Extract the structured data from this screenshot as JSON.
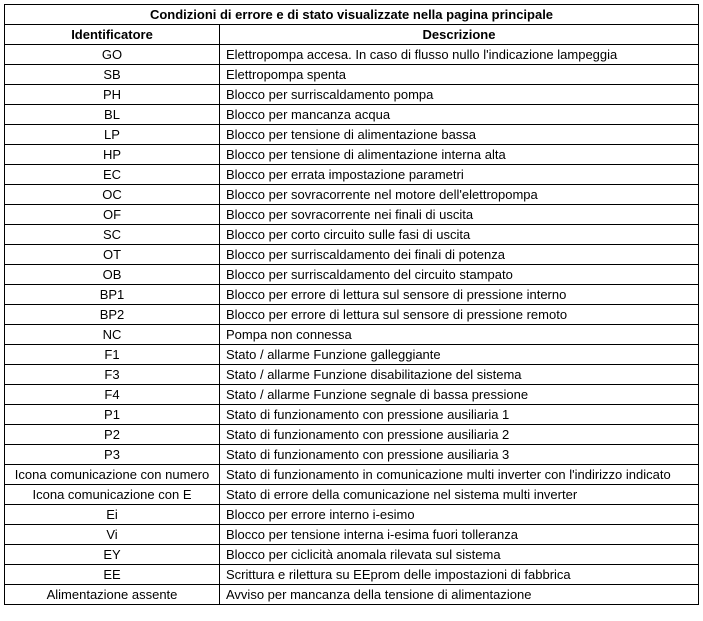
{
  "table": {
    "title": "Condizioni di errore e di stato visualizzate nella pagina principale",
    "columns": [
      "Identificatore",
      "Descrizione"
    ],
    "rows": [
      [
        "GO",
        "Elettropompa accesa.  In caso di flusso nullo l'indicazione lampeggia"
      ],
      [
        "SB",
        "Elettropompa spenta"
      ],
      [
        "PH",
        "Blocco per surriscaldamento pompa"
      ],
      [
        "BL",
        "Blocco per mancanza acqua"
      ],
      [
        "LP",
        "Blocco per tensione di alimentazione bassa"
      ],
      [
        "HP",
        "Blocco per tensione di alimentazione interna alta"
      ],
      [
        "EC",
        "Blocco per errata impostazione  parametri"
      ],
      [
        "OC",
        "Blocco per sovracorrente nel motore dell'elettropompa"
      ],
      [
        "OF",
        "Blocco per sovracorrente nei finali di uscita"
      ],
      [
        "SC",
        "Blocco per corto circuito sulle fasi di uscita"
      ],
      [
        "OT",
        "Blocco per surriscaldamento dei finali di potenza"
      ],
      [
        "OB",
        "Blocco per surriscaldamento del circuito stampato"
      ],
      [
        "BP1",
        "Blocco per errore di lettura sul sensore di pressione interno"
      ],
      [
        "BP2",
        "Blocco per errore di lettura sul sensore di pressione remoto"
      ],
      [
        "NC",
        "Pompa non connessa"
      ],
      [
        "F1",
        "Stato / allarme Funzione galleggiante"
      ],
      [
        "F3",
        "Stato / allarme Funzione disabilitazione del sistema"
      ],
      [
        "F4",
        "Stato / allarme Funzione segnale di bassa pressione"
      ],
      [
        "P1",
        "Stato di funzionamento con pressione ausiliaria 1"
      ],
      [
        "P2",
        "Stato di funzionamento con pressione ausiliaria 2"
      ],
      [
        "P3",
        "Stato di funzionamento con pressione ausiliaria 3"
      ],
      [
        "Icona comunicazione con numero",
        "Stato di funzionamento in comunicazione multi inverter con l'indirizzo indicato"
      ],
      [
        "Icona comunicazione con E",
        "Stato di errore della comunicazione nel sistema multi inverter"
      ],
      [
        "Ei",
        "Blocco per errore interno i-esimo"
      ],
      [
        "Vi",
        "Blocco per tensione interna i-esima fuori tolleranza"
      ],
      [
        "EY",
        "Blocco per ciclicità anomala rilevata sul sistema"
      ],
      [
        "EE",
        "Scrittura e rilettura su EEprom delle impostazioni di fabbrica"
      ],
      [
        "Alimentazione assente",
        "Avviso per mancanza della tensione di alimentazione"
      ]
    ]
  }
}
